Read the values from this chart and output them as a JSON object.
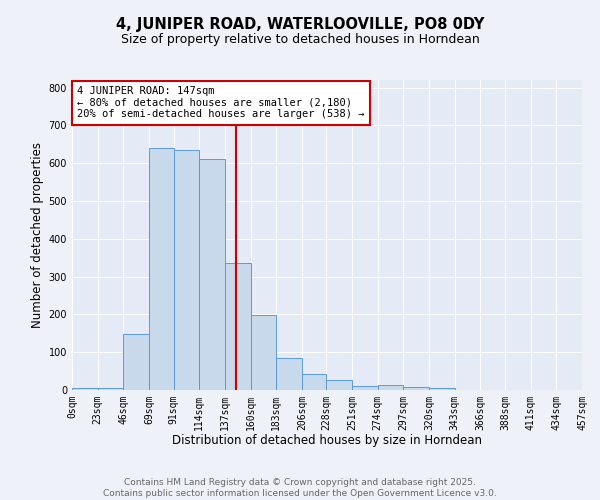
{
  "title": "4, JUNIPER ROAD, WATERLOOVILLE, PO8 0DY",
  "subtitle": "Size of property relative to detached houses in Horndean",
  "xlabel": "Distribution of detached houses by size in Horndean",
  "ylabel": "Number of detached properties",
  "bin_edges": [
    0,
    23,
    46,
    69,
    91,
    114,
    137,
    160,
    183,
    206,
    228,
    251,
    274,
    297,
    320,
    343,
    366,
    388,
    411,
    434,
    457
  ],
  "bin_labels": [
    "0sqm",
    "23sqm",
    "46sqm",
    "69sqm",
    "91sqm",
    "114sqm",
    "137sqm",
    "160sqm",
    "183sqm",
    "206sqm",
    "228sqm",
    "251sqm",
    "274sqm",
    "297sqm",
    "320sqm",
    "343sqm",
    "366sqm",
    "388sqm",
    "411sqm",
    "434sqm",
    "457sqm"
  ],
  "bar_heights": [
    5,
    5,
    148,
    640,
    635,
    610,
    335,
    198,
    85,
    42,
    27,
    10,
    13,
    8,
    5,
    0,
    0,
    0,
    0,
    0,
    5
  ],
  "bar_color": "#c9d9ec",
  "bar_edge_color": "#5b9bd5",
  "property_size": 147,
  "vline_color": "#cc0000",
  "annotation_text": "4 JUNIPER ROAD: 147sqm\n← 80% of detached houses are smaller (2,180)\n20% of semi-detached houses are larger (538) →",
  "annotation_box_color": "#ffffff",
  "annotation_box_edge_color": "#cc0000",
  "ylim": [
    0,
    820
  ],
  "yticks": [
    0,
    100,
    200,
    300,
    400,
    500,
    600,
    700,
    800
  ],
  "background_color": "#eef2f8",
  "plot_bg_color": "#e4eaf6",
  "footer_line1": "Contains HM Land Registry data © Crown copyright and database right 2025.",
  "footer_line2": "Contains public sector information licensed under the Open Government Licence v3.0.",
  "title_fontsize": 10.5,
  "subtitle_fontsize": 9,
  "label_fontsize": 8.5,
  "tick_fontsize": 7,
  "footer_fontsize": 6.5,
  "annot_fontsize": 7.5
}
